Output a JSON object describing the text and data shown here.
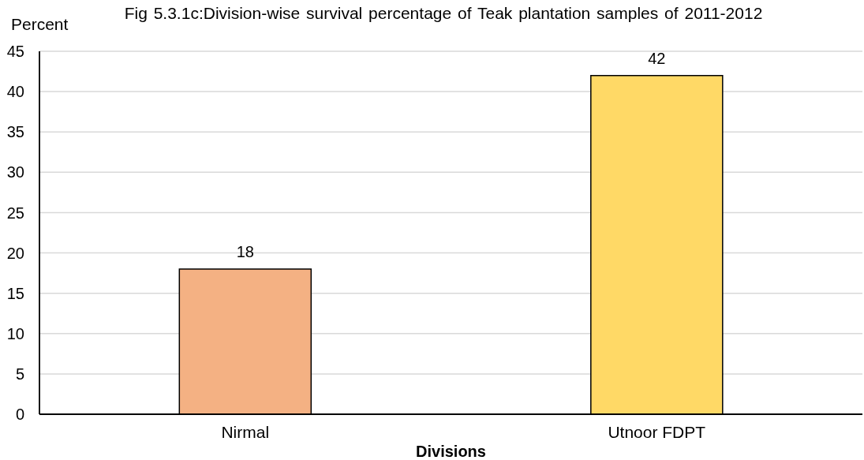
{
  "chart_data": {
    "type": "bar",
    "title": "Fig 5.3.1c:Division-wise survival percentage of Teak plantation samples of 2011-2012",
    "ylabel": "Percent",
    "xlabel": "Divisions",
    "categories": [
      "Nirmal",
      "Utnoor FDPT"
    ],
    "values": [
      18,
      42
    ],
    "colors": [
      "#f4b183",
      "#ffd966"
    ],
    "ylim": [
      0,
      45
    ],
    "yticks": [
      0,
      5,
      10,
      15,
      20,
      25,
      30,
      35,
      40,
      45
    ],
    "grid": "y",
    "data_labels": true
  }
}
